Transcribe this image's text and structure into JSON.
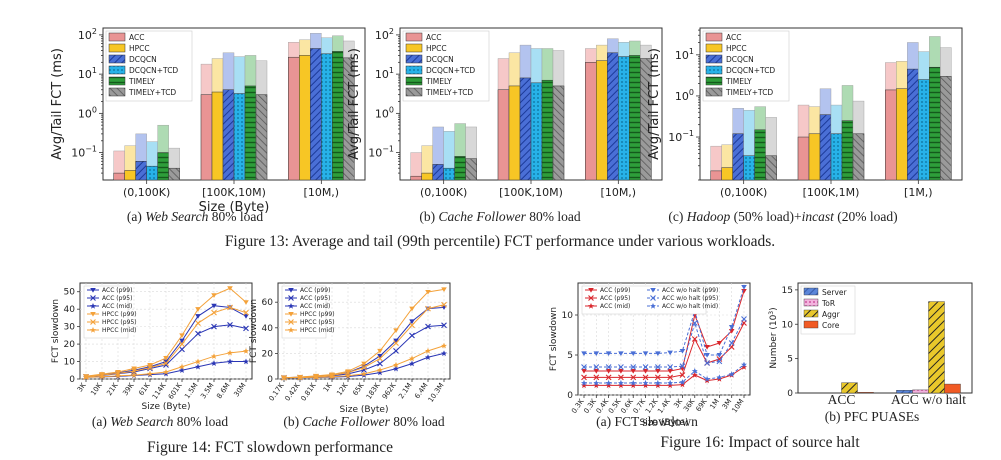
{
  "figure13_caption": "Figure 13: Average and tail (99th percentile) FCT performance under various workloads.",
  "figure14_caption": "Figure 14: FCT slowdown performance",
  "figure16_caption": "Figure 16: Impact of source halt",
  "colors": {
    "ACC": "#e99494",
    "HPCC": "#f7c625",
    "DCQCN": "#4a6fd6",
    "DCQCN+TCD": "#27b2e8",
    "TIMELY": "#2e9e3a",
    "TIMELY+TCD": "#9a9a9a"
  },
  "chart_data": [
    {
      "id": "13a",
      "type": "bar",
      "scale": "log",
      "caption_prefix": "(a) ",
      "caption_italic": "Web Search",
      "caption_suffix": " 80% load",
      "ylabel": "Avg/Tail FCT (ms)",
      "xlabel": "Size (Byte)",
      "ylim": [
        0.02,
        150
      ],
      "yticks": [
        {
          "v": 0.1,
          "b": "10",
          "e": "−1"
        },
        {
          "v": 1,
          "b": "10",
          "e": "0"
        },
        {
          "v": 10,
          "b": "10",
          "e": "1"
        },
        {
          "v": 100,
          "b": "10",
          "e": "2"
        }
      ],
      "categories": [
        "(0,100K)",
        "[100K,10M)",
        "[10M,)"
      ],
      "legend": [
        "ACC",
        "HPCC",
        "DCQCN",
        "DCQCN+TCD",
        "TIMELY",
        "TIMELY+TCD"
      ],
      "series": [
        {
          "name": "ACC",
          "avg": [
            0.03,
            3.0,
            27
          ],
          "tail": [
            0.11,
            18,
            65
          ]
        },
        {
          "name": "HPCC",
          "avg": [
            0.035,
            3.5,
            30
          ],
          "tail": [
            0.15,
            25,
            75
          ]
        },
        {
          "name": "DCQCN",
          "avg": [
            0.06,
            4.0,
            45
          ],
          "tail": [
            0.3,
            35,
            110
          ]
        },
        {
          "name": "DCQCN+TCD",
          "avg": [
            0.045,
            3.2,
            33
          ],
          "tail": [
            0.19,
            28,
            85
          ]
        },
        {
          "name": "TIMELY",
          "avg": [
            0.1,
            5.0,
            38
          ],
          "tail": [
            0.5,
            30,
            95
          ]
        },
        {
          "name": "TIMELY+TCD",
          "avg": [
            0.04,
            3.0,
            26
          ],
          "tail": [
            0.13,
            22,
            70
          ]
        }
      ]
    },
    {
      "id": "13b",
      "type": "bar",
      "scale": "log",
      "caption_prefix": "(b) ",
      "caption_italic": "Cache Follower",
      "caption_suffix": " 80% load",
      "ylabel": "Avg/Tail FCT (ms)",
      "xlabel": "",
      "ylim": [
        0.02,
        150
      ],
      "yticks": [
        {
          "v": 0.1,
          "b": "10",
          "e": "−1"
        },
        {
          "v": 1,
          "b": "10",
          "e": "0"
        },
        {
          "v": 10,
          "b": "10",
          "e": "1"
        },
        {
          "v": 100,
          "b": "10",
          "e": "2"
        }
      ],
      "categories": [
        "(0,100K)",
        "[100K,10M)",
        "[10M,)"
      ],
      "legend": [
        "ACC",
        "HPCC",
        "DCQCN",
        "DCQCN+TCD",
        "TIMELY",
        "TIMELY+TCD"
      ],
      "series": [
        {
          "name": "ACC",
          "avg": [
            0.025,
            4.0,
            20
          ],
          "tail": [
            0.1,
            25,
            45
          ]
        },
        {
          "name": "HPCC",
          "avg": [
            0.03,
            5.0,
            22
          ],
          "tail": [
            0.15,
            35,
            55
          ]
        },
        {
          "name": "DCQCN",
          "avg": [
            0.05,
            8.0,
            35
          ],
          "tail": [
            0.45,
            55,
            80
          ]
        },
        {
          "name": "DCQCN+TCD",
          "avg": [
            0.04,
            6.0,
            28
          ],
          "tail": [
            0.35,
            45,
            65
          ]
        },
        {
          "name": "TIMELY",
          "avg": [
            0.08,
            7.0,
            30
          ],
          "tail": [
            0.55,
            45,
            70
          ]
        },
        {
          "name": "TIMELY+TCD",
          "avg": [
            0.07,
            5.0,
            25
          ],
          "tail": [
            0.45,
            40,
            55
          ]
        }
      ]
    },
    {
      "id": "13c",
      "type": "bar",
      "scale": "log",
      "caption_prefix": "(c) ",
      "caption_italic": "Hadoop",
      "caption_suffix": " (50% load)+",
      "caption_italic2": "incast",
      "caption_suffix2": " (20% load)",
      "ylabel": "Avg/Tail FCT (ms)",
      "xlabel": "",
      "ylim": [
        0.009,
        45
      ],
      "yticks": [
        {
          "v": 0.1,
          "b": "10",
          "e": "−1"
        },
        {
          "v": 1,
          "b": "10",
          "e": "0"
        },
        {
          "v": 10,
          "b": "10",
          "e": "1"
        }
      ],
      "categories": [
        "(0,100K)",
        "[100K,1M)",
        "[1M,)"
      ],
      "legend": [
        "ACC",
        "HPCC",
        "DCQCN",
        "DCQCN+TCD",
        "TIMELY",
        "TIMELY+TCD"
      ],
      "series": [
        {
          "name": "ACC",
          "avg": [
            0.015,
            0.1,
            1.4
          ],
          "tail": [
            0.06,
            0.6,
            6.5
          ]
        },
        {
          "name": "HPCC",
          "avg": [
            0.018,
            0.12,
            1.5
          ],
          "tail": [
            0.065,
            0.55,
            7
          ]
        },
        {
          "name": "DCQCN",
          "avg": [
            0.12,
            0.35,
            4.5
          ],
          "tail": [
            0.5,
            1.5,
            20
          ]
        },
        {
          "name": "DCQCN+TCD",
          "avg": [
            0.035,
            0.12,
            2.5
          ],
          "tail": [
            0.45,
            0.6,
            12
          ]
        },
        {
          "name": "TIMELY",
          "avg": [
            0.15,
            0.25,
            5.0
          ],
          "tail": [
            0.55,
            1.8,
            28
          ]
        },
        {
          "name": "TIMELY+TCD",
          "avg": [
            0.035,
            0.12,
            3.0
          ],
          "tail": [
            0.3,
            0.75,
            15
          ]
        }
      ]
    },
    {
      "id": "14a",
      "type": "line",
      "caption_prefix": "(a) ",
      "caption_italic": "Web Search",
      "caption_suffix": " 80% load",
      "ylabel": "FCT slowdown",
      "xlabel": "Size (Byte)",
      "ylim": [
        0,
        55
      ],
      "yticks": [
        0,
        10,
        20,
        30,
        40,
        50
      ],
      "x": [
        "3K",
        "10K",
        "21K",
        "39K",
        "61K",
        "114K",
        "601K",
        "1.5M",
        "3.5M",
        "8.6M",
        "30M"
      ],
      "legend_note": "",
      "series": [
        {
          "name": "ACC (p99)",
          "color": "#2a36b5",
          "marker": "v",
          "values": [
            1.5,
            2.5,
            3.5,
            5,
            7,
            10,
            22,
            36,
            42,
            41,
            36
          ]
        },
        {
          "name": "ACC (p95)",
          "color": "#2a36b5",
          "marker": "x",
          "values": [
            1.2,
            2,
            3,
            4,
            6,
            8,
            17,
            26,
            30,
            31,
            29
          ]
        },
        {
          "name": "ACC (mid)",
          "color": "#2a36b5",
          "marker": "*",
          "values": [
            1,
            1.2,
            1.5,
            2,
            2.5,
            3,
            5,
            7,
            9,
            10,
            10
          ]
        },
        {
          "name": "HPCC (p99)",
          "color": "#f4a23a",
          "marker": "v",
          "values": [
            1.6,
            2.8,
            4,
            6,
            8,
            12,
            25,
            40,
            48,
            52,
            44
          ]
        },
        {
          "name": "HPCC (p95)",
          "color": "#f4a23a",
          "marker": "x",
          "values": [
            1.3,
            2.2,
            3.2,
            4.5,
            6.5,
            9,
            20,
            32,
            38,
            41,
            38
          ]
        },
        {
          "name": "HPCC (mid)",
          "color": "#f4a23a",
          "marker": "*",
          "values": [
            1,
            1.3,
            1.8,
            2.2,
            3,
            4,
            7,
            10,
            13,
            15,
            16
          ]
        }
      ]
    },
    {
      "id": "14b",
      "type": "line",
      "caption_prefix": "(b) ",
      "caption_italic": "Cache Follower",
      "caption_suffix": " 80% load",
      "ylabel": "FCT slowdown",
      "xlabel": "Size (Byte)",
      "ylim": [
        0,
        75
      ],
      "yticks": [
        0,
        20,
        40,
        60
      ],
      "x": [
        "0.17K",
        "0.42K",
        "0.81K",
        "1K",
        "12K",
        "65K",
        "183K",
        "962K",
        "2.1M",
        "6.4M",
        "10.3M"
      ],
      "series": [
        {
          "name": "ACC (p99)",
          "color": "#2a36b5",
          "marker": "v",
          "values": [
            1,
            1.5,
            2,
            3,
            5,
            10,
            18,
            30,
            45,
            55,
            56
          ]
        },
        {
          "name": "ACC (p95)",
          "color": "#2a36b5",
          "marker": "x",
          "values": [
            1,
            1.2,
            1.6,
            2.4,
            4,
            7,
            12,
            22,
            34,
            41,
            42
          ]
        },
        {
          "name": "ACC (mid)",
          "color": "#2a36b5",
          "marker": "*",
          "values": [
            1,
            1,
            1.2,
            1.5,
            2,
            3,
            5,
            8,
            12,
            17,
            20
          ]
        },
        {
          "name": "HPCC (p99)",
          "color": "#f4a23a",
          "marker": "v",
          "values": [
            1,
            1.6,
            2.4,
            3.5,
            6,
            12,
            22,
            38,
            55,
            68,
            70
          ]
        },
        {
          "name": "HPCC (p95)",
          "color": "#f4a23a",
          "marker": "x",
          "values": [
            1,
            1.3,
            1.8,
            2.8,
            5,
            9,
            16,
            28,
            42,
            55,
            58
          ]
        },
        {
          "name": "HPCC (mid)",
          "color": "#f4a23a",
          "marker": "*",
          "values": [
            1,
            1.1,
            1.4,
            1.8,
            2.5,
            4,
            7,
            11,
            16,
            22,
            26
          ]
        }
      ]
    },
    {
      "id": "16a",
      "type": "line",
      "caption_prefix": "(a) ",
      "caption_italic": "",
      "caption_suffix": "FCT slowdown",
      "ylabel": "FCT slowdown",
      "xlabel": "Size (Byte)",
      "ylim": [
        0,
        14
      ],
      "yticks": [
        0,
        5,
        10
      ],
      "x": [
        "0.3K",
        "0.3K",
        "0.4K",
        "0.5K",
        "0.6K",
        "0.7K",
        "1.2K",
        "1.4K",
        "3K",
        "36K",
        "69K",
        "1M",
        "3M",
        "10M"
      ],
      "series": [
        {
          "name": "ACC (p99)",
          "color": "#d9262c",
          "marker": "v",
          "values": [
            3,
            3,
            3,
            3,
            3,
            3,
            3,
            3,
            3.3,
            10,
            6,
            6.5,
            8,
            13
          ]
        },
        {
          "name": "ACC (p95)",
          "color": "#d9262c",
          "marker": "x",
          "values": [
            2.2,
            2.2,
            2.2,
            2.2,
            2.2,
            2.2,
            2.2,
            2.2,
            2.5,
            7,
            4,
            4.5,
            6,
            9
          ]
        },
        {
          "name": "ACC (mid)",
          "color": "#d9262c",
          "marker": "*",
          "values": [
            1.2,
            1.2,
            1.2,
            1.2,
            1.2,
            1.2,
            1.2,
            1.2,
            1.3,
            2.5,
            1.8,
            2,
            2.5,
            3.5
          ]
        },
        {
          "name": "ACC w/o halt (p99)",
          "color": "#4a6fd6",
          "marker": "v",
          "dash": true,
          "values": [
            5.2,
            5.2,
            5.2,
            5.2,
            5.2,
            5.2,
            5.2,
            5.3,
            5.5,
            10.5,
            5,
            5,
            8.5,
            13.5
          ]
        },
        {
          "name": "ACC w/o halt (p95)",
          "color": "#4a6fd6",
          "marker": "x",
          "dash": true,
          "values": [
            3.5,
            3.5,
            3.5,
            3.5,
            3.5,
            3.5,
            3.5,
            3.5,
            3.6,
            9,
            4,
            4.2,
            6.5,
            9.5
          ]
        },
        {
          "name": "ACC w/o halt (mid)",
          "color": "#4a6fd6",
          "marker": "*",
          "dash": true,
          "values": [
            1.5,
            1.5,
            1.5,
            1.5,
            1.5,
            1.5,
            1.5,
            1.5,
            1.6,
            3,
            2,
            2.2,
            2.6,
            3.8
          ]
        }
      ]
    },
    {
      "id": "16b",
      "type": "bar",
      "caption_prefix": "(b) ",
      "caption_italic": "",
      "caption_suffix": "PFC PUASEs",
      "ylabel_base": "Number (10",
      "ylabel_exp": "3",
      "ylabel_end": ")",
      "ylim": [
        0,
        16
      ],
      "yticks": [
        0,
        5,
        10,
        15
      ],
      "categories": [
        "ACC",
        "ACC w/o halt"
      ],
      "series": [
        {
          "name": "Server",
          "color": "#5b86d9",
          "values": [
            0,
            0.4
          ]
        },
        {
          "name": "ToR",
          "color": "#e377c2",
          "values": [
            0,
            0.45
          ]
        },
        {
          "name": "Aggr",
          "color": "#e9c82b",
          "values": [
            1.5,
            13.3
          ]
        },
        {
          "name": "Core",
          "color": "#f15a24",
          "values": [
            0.1,
            1.3
          ]
        }
      ]
    }
  ]
}
